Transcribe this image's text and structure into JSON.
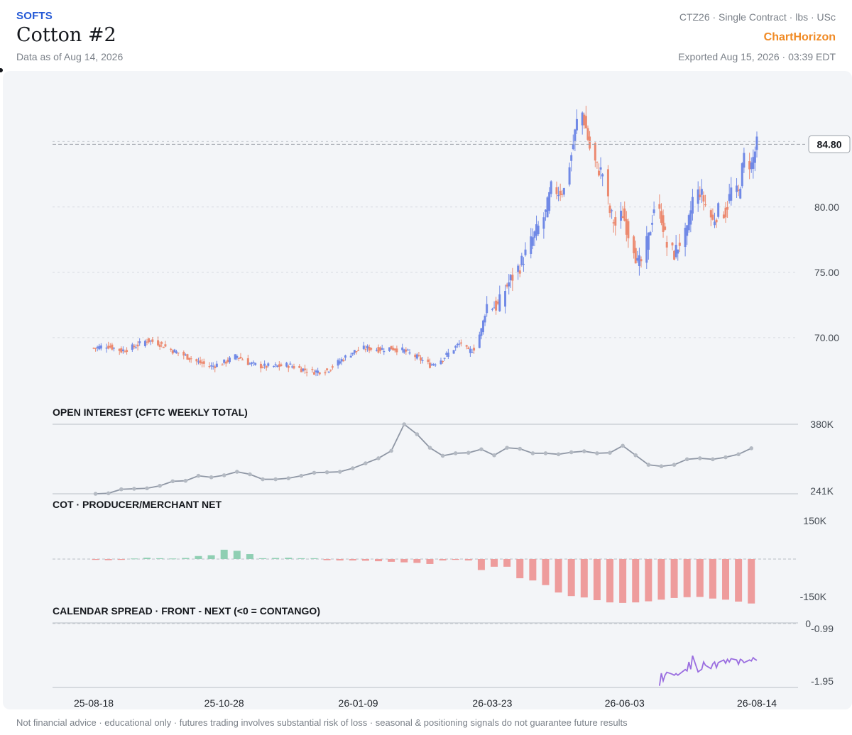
{
  "header": {
    "category": "SOFTS",
    "title": "Cotton #2",
    "as_of": "Data as of Aug 14, 2026",
    "contract_info": "CTZ26 · Single Contract · lbs · USc",
    "brand": "ChartHorizon",
    "exported": "Exported Aug 15, 2026 · 03:39 EDT"
  },
  "footer": {
    "disclaimer": "Not financial advice · educational only · futures trading involves substantial risk of loss · seasonal & positioning signals do not guarantee future results"
  },
  "colors": {
    "up": "#7089e6",
    "down": "#ec8a70",
    "oi_line": "#8f97a5",
    "cot_positive": "#8fcfb3",
    "cot_negative": "#ee9c9c",
    "spread_line": "#9a6de0",
    "panel_bg": "#f3f5f8"
  },
  "chart_data": [
    {
      "type": "candlestick",
      "title": "",
      "unit": "USc/lb",
      "y_ticks": [
        70.0,
        75.0,
        80.0
      ],
      "y_tick_labels": [
        "70.00",
        "75.00",
        "80.00"
      ],
      "ylim": [
        65,
        89
      ],
      "x_tick_labels": [
        "25-08-18",
        "25-10-28",
        "26-01-09",
        "26-03-23",
        "26-06-03",
        "26-08-14"
      ],
      "last_price": 84.8,
      "last_price_label": "84.80",
      "start_date": "2025-08-18",
      "end_date": "2026-08-14",
      "close_path": [
        [
          "2025-08-18",
          69.2
        ],
        [
          "2025-08-25",
          69.4
        ],
        [
          "2025-09-02",
          69.0
        ],
        [
          "2025-09-09",
          69.3
        ],
        [
          "2025-09-16",
          69.8
        ],
        [
          "2025-09-22",
          69.6
        ],
        [
          "2025-09-30",
          69.0
        ],
        [
          "2025-10-07",
          68.6
        ],
        [
          "2025-10-14",
          68.1
        ],
        [
          "2025-10-21",
          67.8
        ],
        [
          "2025-10-28",
          68.1
        ],
        [
          "2025-11-04",
          68.6
        ],
        [
          "2025-11-11",
          68.0
        ],
        [
          "2025-11-18",
          67.8
        ],
        [
          "2025-11-25",
          67.8
        ],
        [
          "2025-12-02",
          67.9
        ],
        [
          "2025-12-09",
          67.6
        ],
        [
          "2025-12-16",
          67.4
        ],
        [
          "2025-12-23",
          67.5
        ],
        [
          "2025-12-30",
          68.2
        ],
        [
          "2026-01-06",
          68.9
        ],
        [
          "2026-01-13",
          69.2
        ],
        [
          "2026-01-20",
          69.1
        ],
        [
          "2026-01-27",
          69.2
        ],
        [
          "2026-02-03",
          69.0
        ],
        [
          "2026-02-10",
          68.5
        ],
        [
          "2026-02-17",
          67.9
        ],
        [
          "2026-02-24",
          68.4
        ],
        [
          "2026-03-03",
          69.3
        ],
        [
          "2026-03-06",
          69.6
        ],
        [
          "2026-03-10",
          68.9
        ],
        [
          "2026-03-13",
          69.2
        ],
        [
          "2026-03-17",
          70.6
        ],
        [
          "2026-03-20",
          72.5
        ],
        [
          "2026-03-26",
          72.4
        ],
        [
          "2026-03-31",
          74.0
        ],
        [
          "2026-04-07",
          75.5
        ],
        [
          "2026-04-14",
          77.6
        ],
        [
          "2026-04-21",
          79.5
        ],
        [
          "2026-04-24",
          81.4
        ],
        [
          "2026-04-28",
          81.2
        ],
        [
          "2026-05-01",
          81.3
        ],
        [
          "2026-05-05",
          84.0
        ],
        [
          "2026-05-08",
          86.5
        ],
        [
          "2026-05-11",
          87.2
        ],
        [
          "2026-05-13",
          86.0
        ],
        [
          "2026-05-15",
          84.5
        ],
        [
          "2026-05-19",
          83.0
        ],
        [
          "2026-05-22",
          82.6
        ],
        [
          "2026-05-26",
          79.6
        ],
        [
          "2026-05-29",
          78.6
        ],
        [
          "2026-06-02",
          79.5
        ],
        [
          "2026-06-05",
          78.0
        ],
        [
          "2026-06-08",
          77.0
        ],
        [
          "2026-06-10",
          75.6
        ],
        [
          "2026-06-12",
          75.8
        ],
        [
          "2026-06-16",
          77.6
        ],
        [
          "2026-06-19",
          80.0
        ],
        [
          "2026-06-23",
          79.3
        ],
        [
          "2026-06-26",
          77.0
        ],
        [
          "2026-06-30",
          76.4
        ],
        [
          "2026-07-03",
          77.3
        ],
        [
          "2026-07-07",
          78.0
        ],
        [
          "2026-07-10",
          80.6
        ],
        [
          "2026-07-14",
          81.2
        ],
        [
          "2026-07-17",
          80.2
        ],
        [
          "2026-07-21",
          78.9
        ],
        [
          "2026-07-24",
          79.7
        ],
        [
          "2026-07-28",
          79.6
        ],
        [
          "2026-07-31",
          81.3
        ],
        [
          "2026-08-04",
          81.0
        ],
        [
          "2026-08-07",
          83.8
        ],
        [
          "2026-08-11",
          83.2
        ],
        [
          "2026-08-14",
          84.8
        ]
      ]
    },
    {
      "type": "line",
      "title": "OPEN INTEREST (CFTC WEEKLY TOTAL)",
      "unit": "contracts (thousands)",
      "ylim": [
        241,
        380
      ],
      "y_tick_labels": [
        "380K",
        "241K"
      ],
      "x": [
        "2025-08-19",
        "2025-08-26",
        "2025-09-02",
        "2025-09-09",
        "2025-09-16",
        "2025-09-23",
        "2025-09-30",
        "2025-10-07",
        "2025-10-14",
        "2025-10-21",
        "2025-10-28",
        "2025-11-04",
        "2025-11-11",
        "2025-11-18",
        "2025-11-25",
        "2025-12-02",
        "2025-12-09",
        "2025-12-16",
        "2025-12-23",
        "2025-12-30",
        "2026-01-06",
        "2026-01-13",
        "2026-01-20",
        "2026-01-27",
        "2026-02-03",
        "2026-02-10",
        "2026-02-17",
        "2026-02-24",
        "2026-03-03",
        "2026-03-10",
        "2026-03-17",
        "2026-03-24",
        "2026-03-31",
        "2026-04-07",
        "2026-04-14",
        "2026-04-21",
        "2026-04-28",
        "2026-05-05",
        "2026-05-12",
        "2026-05-19",
        "2026-05-26",
        "2026-06-02",
        "2026-06-09",
        "2026-06-16",
        "2026-06-23",
        "2026-06-30",
        "2026-07-07",
        "2026-07-14",
        "2026-07-21",
        "2026-07-28",
        "2026-08-04",
        "2026-08-11"
      ],
      "values": [
        241,
        242,
        250,
        251,
        252,
        257,
        266,
        267,
        277,
        274,
        278,
        285,
        280,
        270,
        270,
        272,
        277,
        283,
        284,
        285,
        292,
        302,
        312,
        327,
        380,
        360,
        333,
        317,
        322,
        323,
        330,
        318,
        333,
        331,
        322,
        322,
        320,
        324,
        326,
        322,
        323,
        337,
        318,
        299,
        296,
        299,
        310,
        312,
        310,
        314,
        320,
        332
      ]
    },
    {
      "type": "bar",
      "title": "COT · PRODUCER/MERCHANT NET",
      "unit": "contracts (thousands)",
      "ylim": [
        -150,
        150
      ],
      "y_tick_labels": [
        "150K",
        "-150K"
      ],
      "x": [
        "2025-08-19",
        "2025-08-26",
        "2025-09-02",
        "2025-09-09",
        "2025-09-16",
        "2025-09-23",
        "2025-09-30",
        "2025-10-07",
        "2025-10-14",
        "2025-10-21",
        "2025-10-28",
        "2025-11-04",
        "2025-11-11",
        "2025-11-18",
        "2025-11-25",
        "2025-12-02",
        "2025-12-09",
        "2025-12-16",
        "2025-12-23",
        "2025-12-30",
        "2026-01-06",
        "2026-01-13",
        "2026-01-20",
        "2026-01-27",
        "2026-02-03",
        "2026-02-10",
        "2026-02-17",
        "2026-02-24",
        "2026-03-03",
        "2026-03-10",
        "2026-03-17",
        "2026-03-24",
        "2026-03-31",
        "2026-04-07",
        "2026-04-14",
        "2026-04-21",
        "2026-04-28",
        "2026-05-05",
        "2026-05-12",
        "2026-05-19",
        "2026-05-26",
        "2026-06-02",
        "2026-06-09",
        "2026-06-16",
        "2026-06-23",
        "2026-06-30",
        "2026-07-07",
        "2026-07-14",
        "2026-07-21",
        "2026-07-28",
        "2026-08-04",
        "2026-08-11"
      ],
      "values": [
        -3,
        -4,
        -3,
        2,
        5,
        3,
        2,
        4,
        11,
        14,
        34,
        30,
        18,
        3,
        4,
        5,
        3,
        3,
        -4,
        -5,
        -5,
        -6,
        -8,
        -10,
        -12,
        -14,
        -18,
        -5,
        -3,
        -5,
        -40,
        -28,
        -28,
        -70,
        -78,
        -95,
        -122,
        -135,
        -140,
        -150,
        -158,
        -160,
        -158,
        -154,
        -148,
        -142,
        -139,
        -138,
        -144,
        -148,
        -155,
        -162
      ]
    },
    {
      "type": "line",
      "title": "CALENDAR SPREAD · FRONT - NEXT (<0 = CONTANGO)",
      "unit": "USc/lb",
      "ylim": [
        -2.0,
        0.0
      ],
      "y_tick_labels": [
        "0",
        "-0.99",
        "-1.95"
      ],
      "x": [
        "2026-06-22",
        "2026-06-23",
        "2026-06-24",
        "2026-06-25",
        "2026-06-26",
        "2026-06-29",
        "2026-06-30",
        "2026-07-01",
        "2026-07-02",
        "2026-07-06",
        "2026-07-07",
        "2026-07-08",
        "2026-07-09",
        "2026-07-10",
        "2026-07-13",
        "2026-07-14",
        "2026-07-15",
        "2026-07-16",
        "2026-07-17",
        "2026-07-20",
        "2026-07-21",
        "2026-07-22",
        "2026-07-23",
        "2026-07-24",
        "2026-07-27",
        "2026-07-28",
        "2026-07-29",
        "2026-07-30",
        "2026-07-31",
        "2026-08-03",
        "2026-08-04",
        "2026-08-05",
        "2026-08-06",
        "2026-08-07",
        "2026-08-10",
        "2026-08-11",
        "2026-08-12",
        "2026-08-13",
        "2026-08-14"
      ],
      "values": [
        -1.9,
        -1.52,
        -1.75,
        -1.58,
        -1.49,
        -1.55,
        -1.58,
        -1.53,
        -1.58,
        -1.41,
        -1.45,
        -1.18,
        -1.4,
        -0.99,
        -1.48,
        -1.44,
        -1.4,
        -1.18,
        -1.28,
        -1.38,
        -1.24,
        -1.18,
        -1.35,
        -1.2,
        -1.12,
        -1.22,
        -1.1,
        -1.18,
        -1.08,
        -1.12,
        -1.25,
        -1.1,
        -1.13,
        -1.2,
        -1.12,
        -1.15,
        -1.05,
        -1.1,
        -1.13
      ]
    }
  ]
}
